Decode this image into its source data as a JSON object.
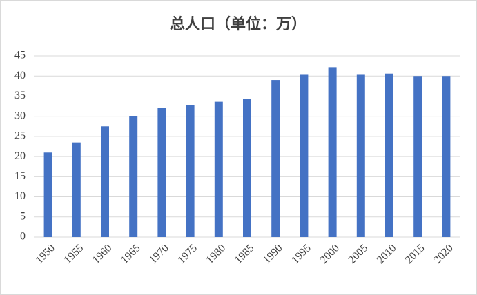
{
  "chart_data": {
    "type": "bar",
    "title": "总人口（单位：万）",
    "categories": [
      "1950",
      "1955",
      "1960",
      "1965",
      "1970",
      "1975",
      "1980",
      "1985",
      "1990",
      "1995",
      "2000",
      "2005",
      "2010",
      "2015",
      "2020"
    ],
    "values": [
      21,
      23.5,
      27.5,
      30,
      32,
      32.8,
      33.6,
      34.3,
      39,
      40.3,
      42.2,
      40.3,
      40.6,
      40,
      40
    ],
    "color": "#4472c4",
    "ylim": [
      0,
      45
    ],
    "yticks": [
      0,
      5,
      10,
      15,
      20,
      25,
      30,
      35,
      40,
      45
    ],
    "grid": true
  }
}
